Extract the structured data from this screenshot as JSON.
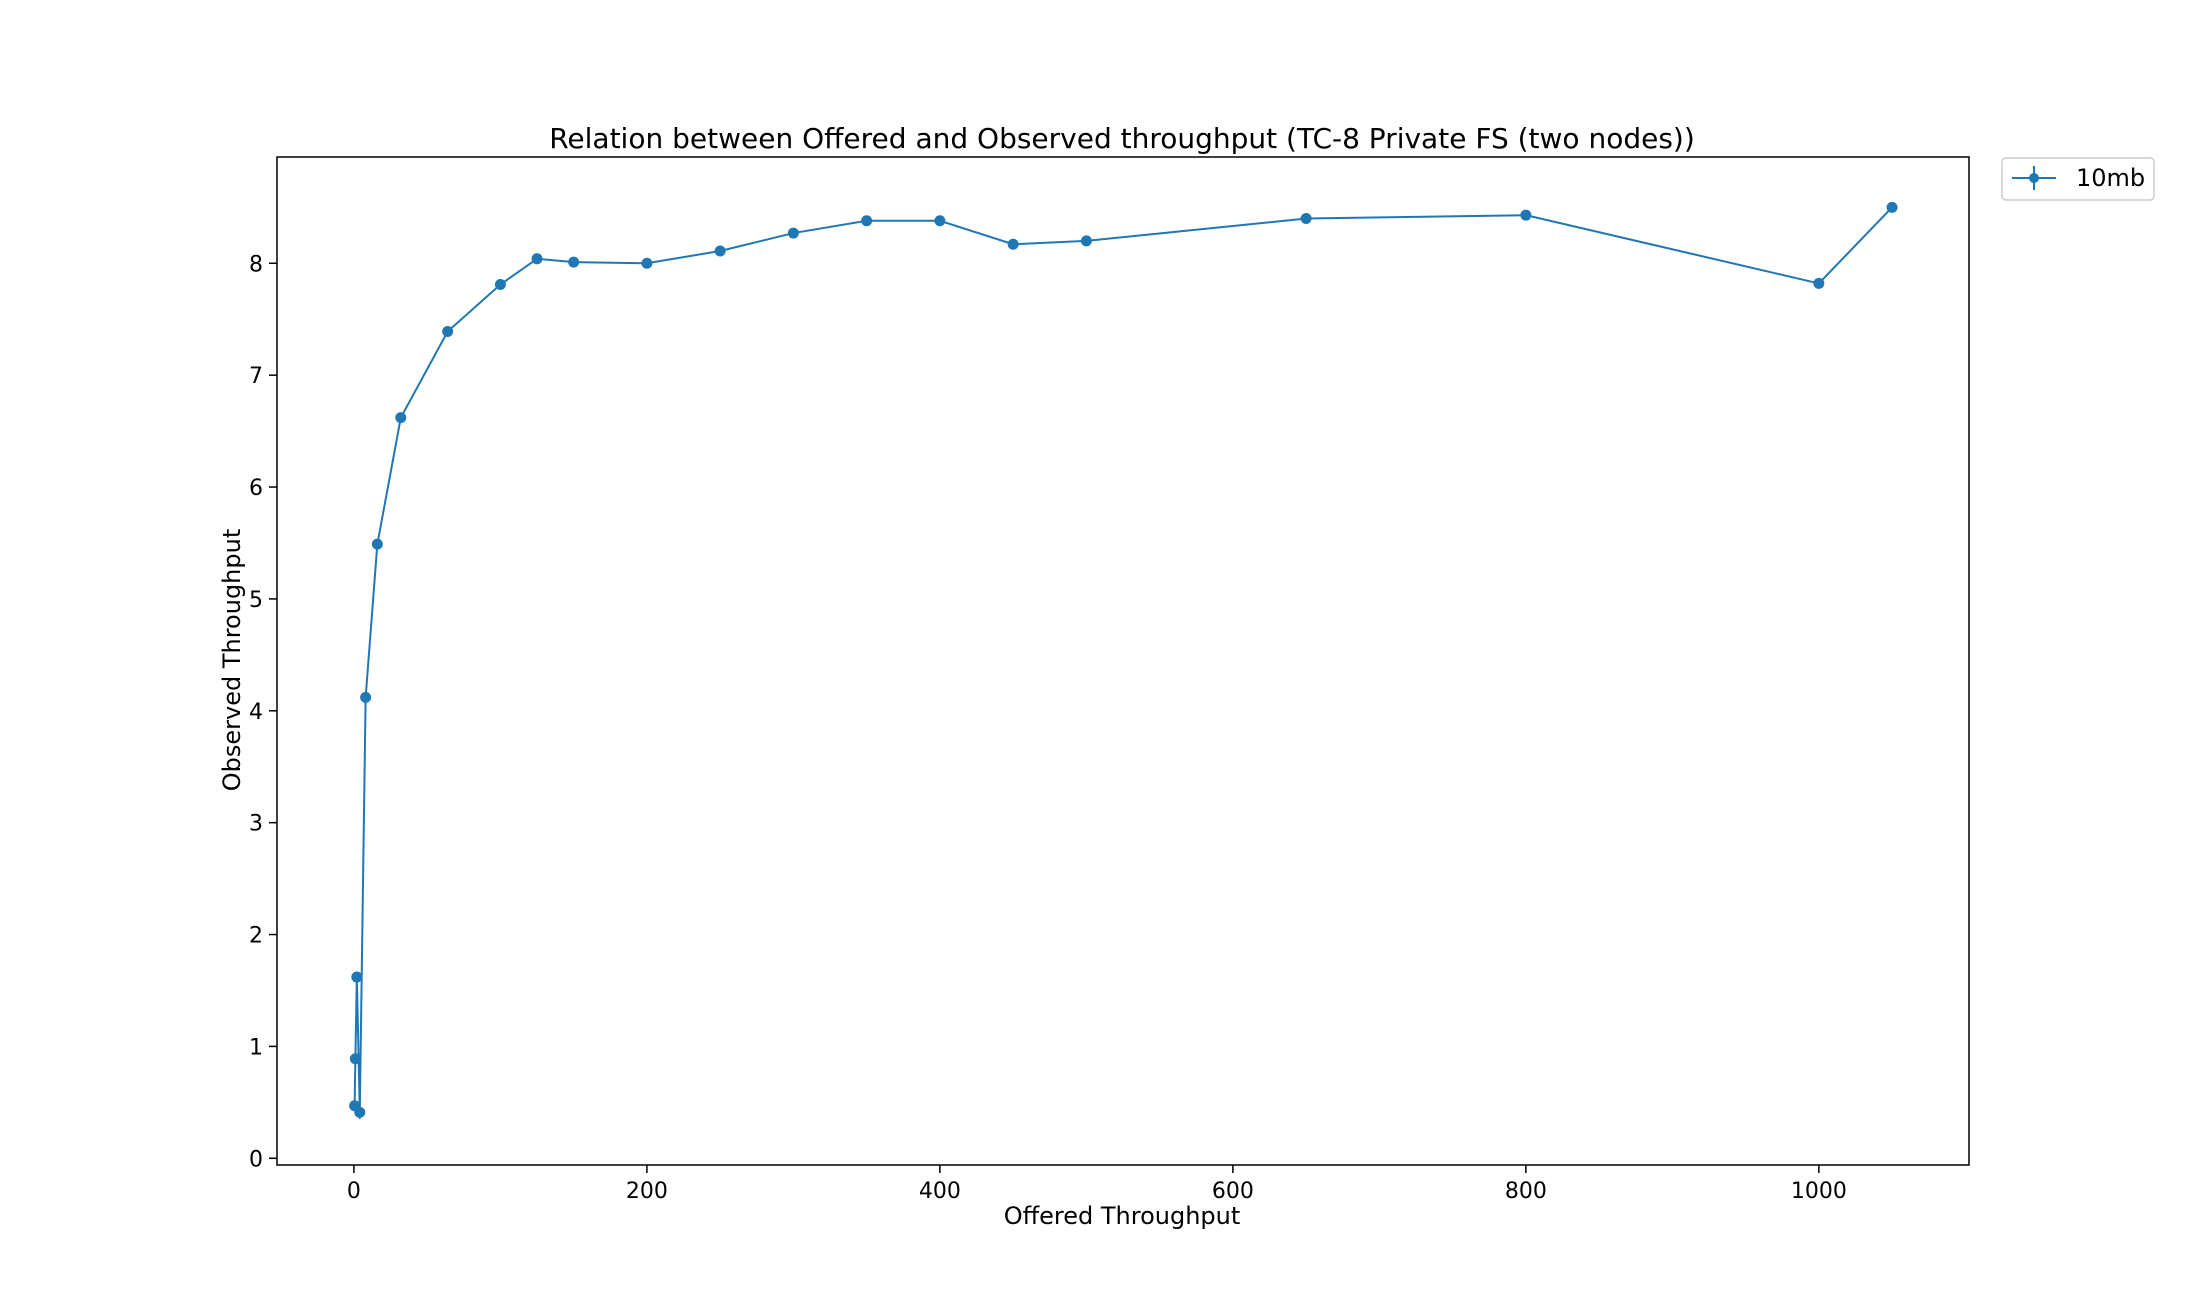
{
  "chart_data": {
    "type": "line",
    "title": "Relation between Offered and Observed throughput (TC-8  Private FS (two nodes))",
    "xlabel": "Offered Throughput",
    "ylabel": "Observed Throughput",
    "xlim": [
      -52.5,
      1102.5
    ],
    "ylim": [
      -0.06,
      8.95
    ],
    "xticks": [
      0,
      200,
      400,
      600,
      800,
      1000
    ],
    "xtick_labels": [
      "0",
      "200",
      "400",
      "600",
      "800",
      "1000"
    ],
    "yticks": [
      0,
      1,
      2,
      3,
      4,
      5,
      6,
      7,
      8
    ],
    "ytick_labels": [
      "0",
      "1",
      "2",
      "3",
      "4",
      "5",
      "6",
      "7",
      "8"
    ],
    "grid": false,
    "legend_position": "outside-top-right",
    "series": [
      {
        "name": "10mb",
        "color": "#1f77b4",
        "marker": "circle",
        "error_bars": true,
        "x": [
          0.5,
          1,
          2,
          4,
          8,
          16,
          32,
          64,
          100,
          125,
          150,
          200,
          250,
          300,
          350,
          400,
          450,
          500,
          650,
          800,
          1000,
          1050
        ],
        "y": [
          0.47,
          0.89,
          1.62,
          0.41,
          4.12,
          5.49,
          6.62,
          7.39,
          7.81,
          8.04,
          8.01,
          8.0,
          8.11,
          8.27,
          8.38,
          8.38,
          8.17,
          8.2,
          8.4,
          8.43,
          7.82,
          8.5
        ],
        "yerr": [
          0.02,
          0.02,
          0.03,
          0.06,
          0.03,
          0.02,
          0.02,
          0.02,
          0.02,
          0.02,
          0.02,
          0.02,
          0.02,
          0.02,
          0.02,
          0.02,
          0.02,
          0.02,
          0.02,
          0.02,
          0.02,
          0.02
        ]
      }
    ]
  }
}
